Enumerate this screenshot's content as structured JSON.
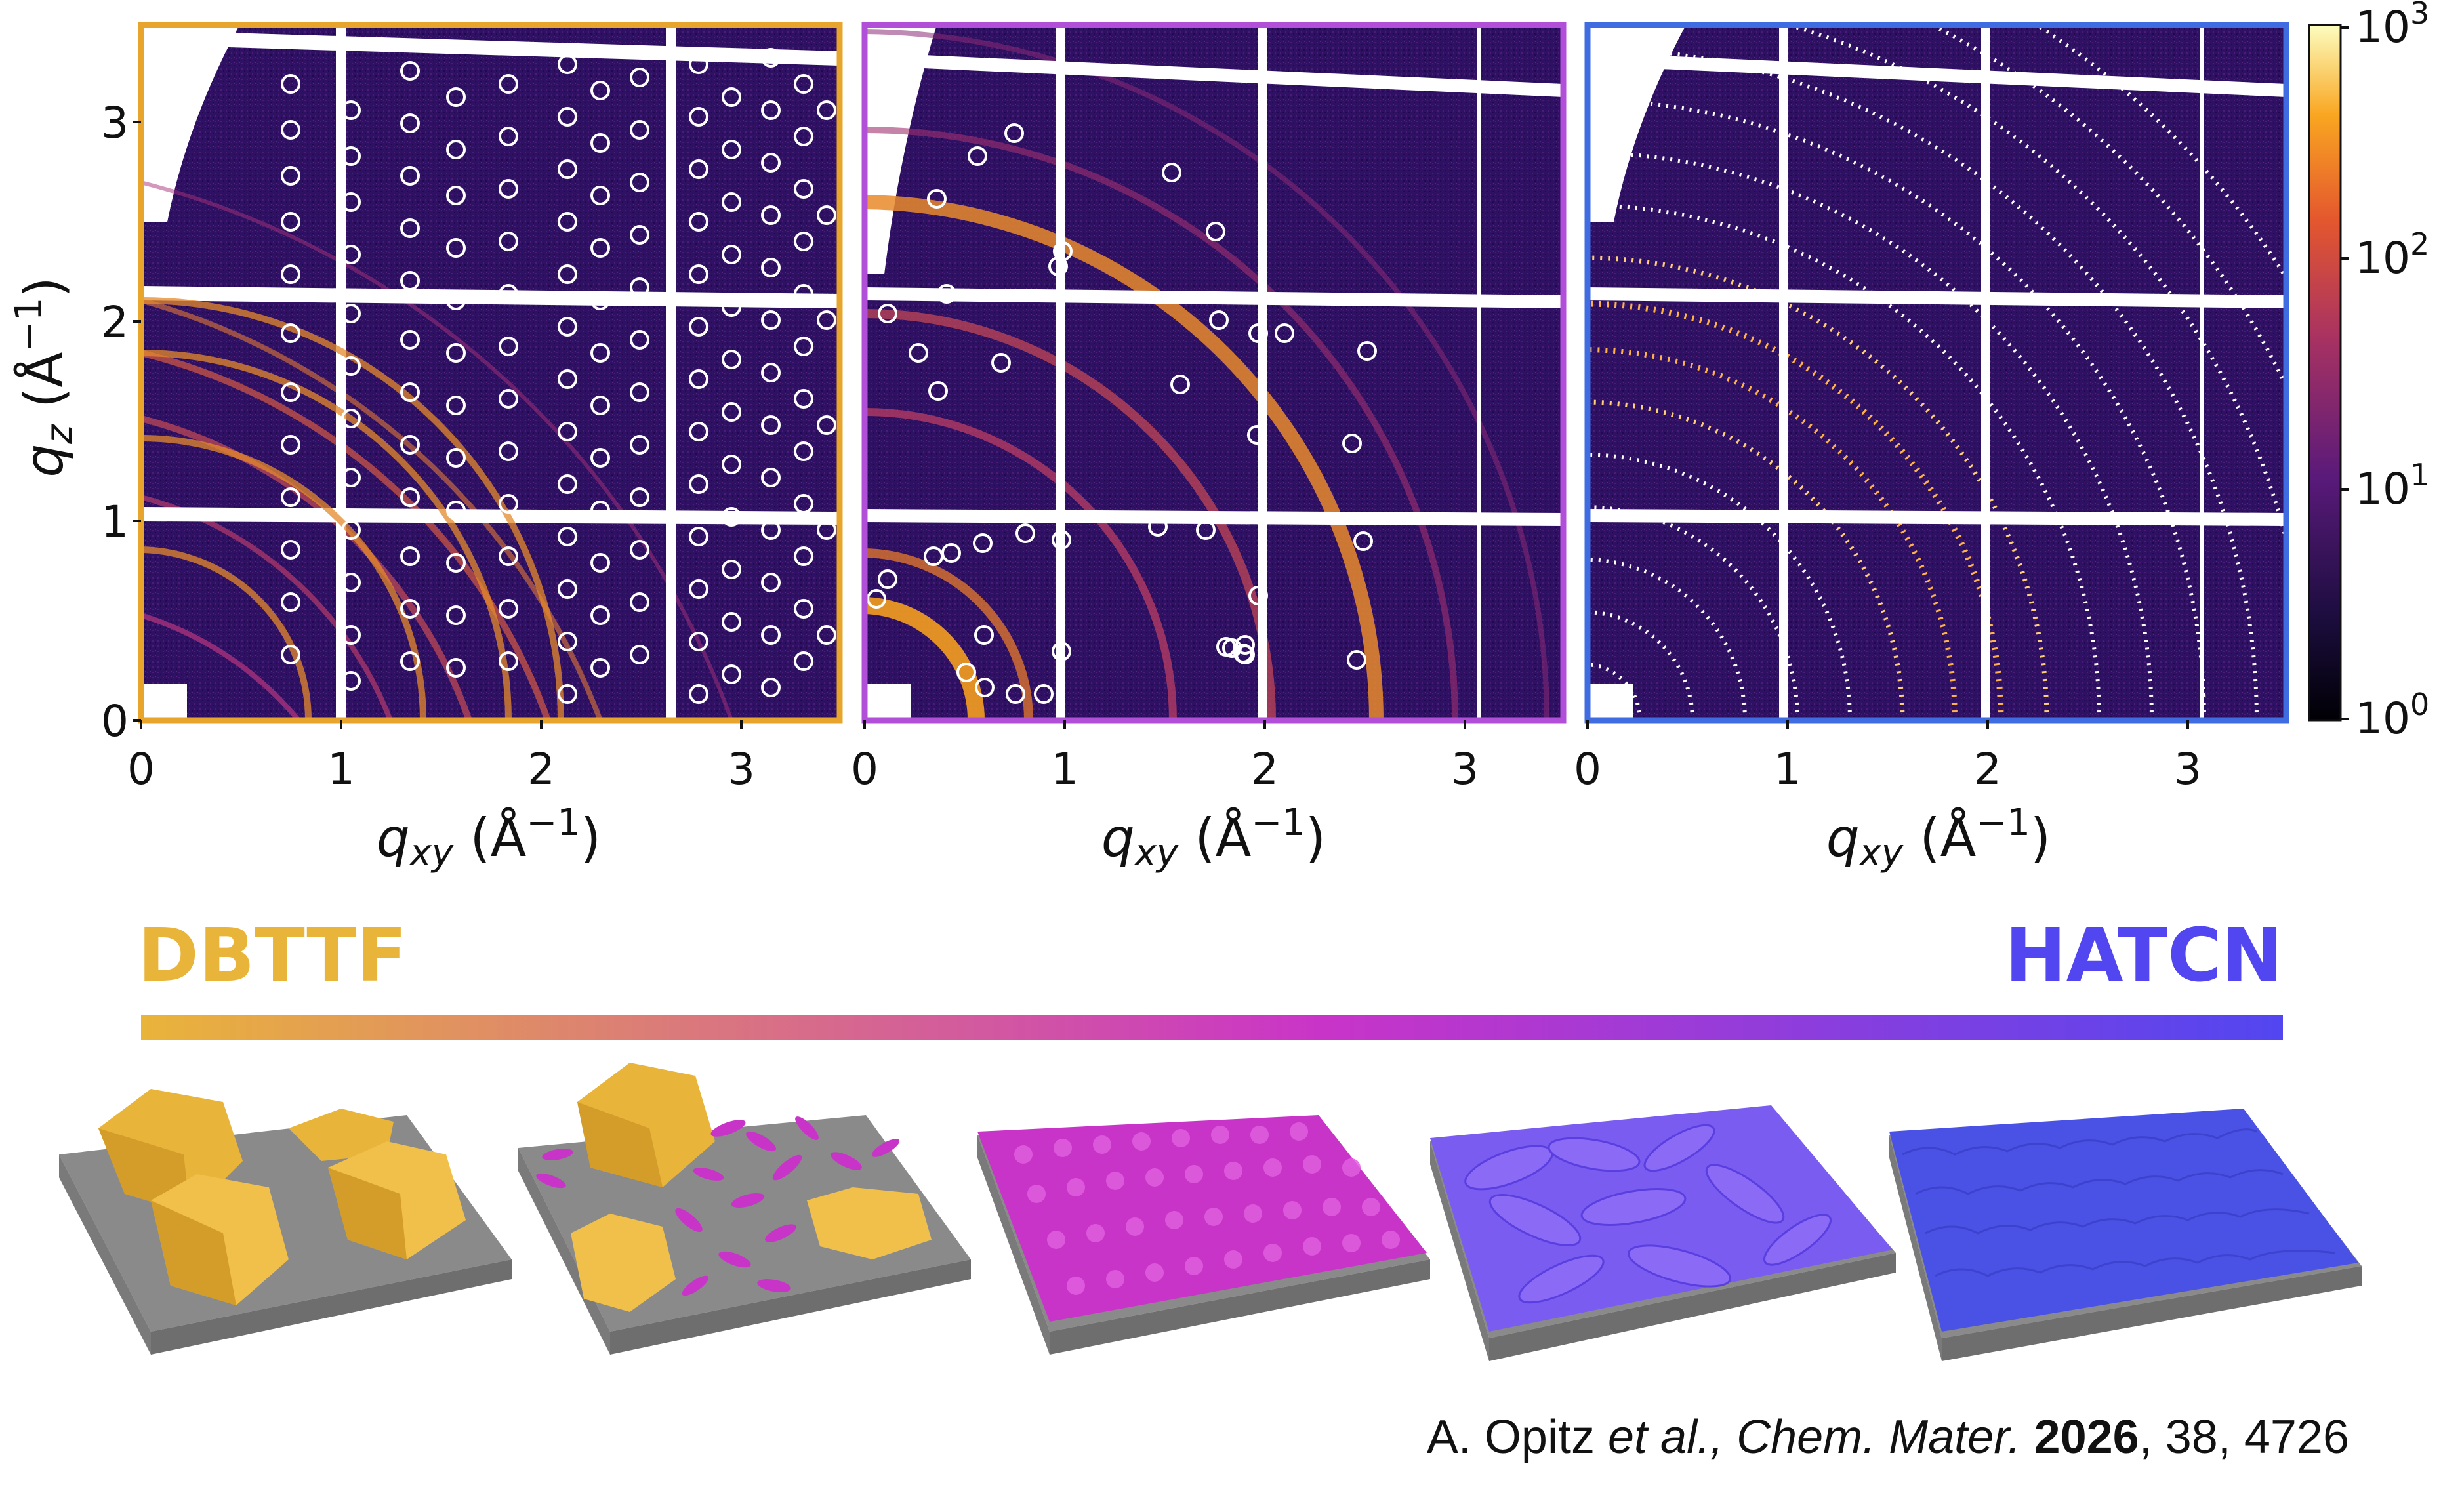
{
  "panels": [
    {
      "id": "dbttf",
      "border_color": "#E7A52E"
    },
    {
      "id": "mixed",
      "border_color": "#B24FD9"
    },
    {
      "id": "hatcn",
      "border_color": "#3F6CE0"
    }
  ],
  "axes": {
    "x_ticks": [
      "0",
      "1",
      "2",
      "3"
    ],
    "y_ticks": [
      "0",
      "1",
      "2",
      "3"
    ],
    "x_label_main": "q",
    "x_label_sub": "xy",
    "x_label_unit": "(Å",
    "x_label_exp": "−1",
    "x_label_close": ")",
    "y_label_main": "q",
    "y_label_sub": "z",
    "y_label_unit": "(Å",
    "y_label_exp": "−1",
    "y_label_close": ")"
  },
  "colorbar": {
    "scale": "log",
    "ticks": [
      {
        "base": "10",
        "exp": "3"
      },
      {
        "base": "10",
        "exp": "2"
      },
      {
        "base": "10",
        "exp": "1"
      },
      {
        "base": "10",
        "exp": "0"
      }
    ]
  },
  "gradient": {
    "left_label": "DBTTF",
    "right_label": "HATCN",
    "left_color": "#E9B43A",
    "mid_color": "#C934C8",
    "right_color": "#5246F0"
  },
  "citation": {
    "author": "A. Opitz ",
    "etal": "et al.,",
    "journal": " Chem. Mater.",
    "year": " 2026",
    "rest": ", 38, 4726"
  }
}
